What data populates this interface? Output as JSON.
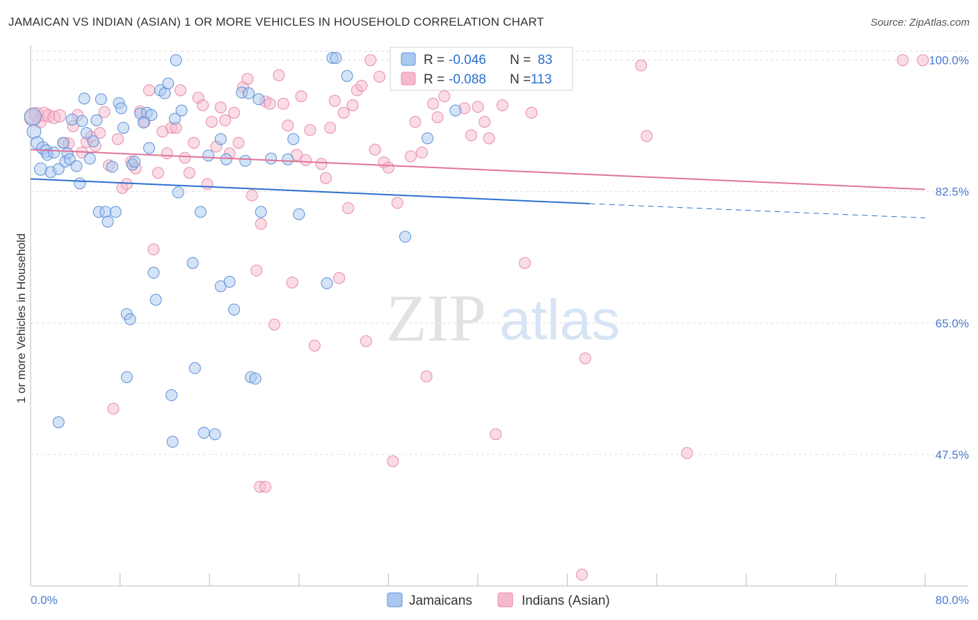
{
  "header": {
    "title": "JAMAICAN VS INDIAN (ASIAN) 1 OR MORE VEHICLES IN HOUSEHOLD CORRELATION CHART",
    "source": "Source: ZipAtlas.com"
  },
  "watermark": {
    "zip": "ZIP",
    "atlas": "atlas"
  },
  "colors": {
    "blue_fill": "#a9c8ef",
    "blue_stroke": "#5b8fd6",
    "blue_line": "#2a6fcf",
    "pink_fill": "#f5b9cc",
    "pink_stroke": "#e88aa8",
    "pink_line": "#e0739a",
    "axis_text": "#4a7bd0",
    "grid": "#dddddd"
  },
  "legend_box": {
    "rows": [
      {
        "r_label": "R =",
        "r_value": "-0.046",
        "n_label": "N =",
        "n_value": "83"
      },
      {
        "r_label": "R =",
        "r_value": "-0.088",
        "n_label": "N =",
        "n_value": "113"
      }
    ]
  },
  "chart_data": {
    "type": "scatter",
    "title": "JAMAICAN VS INDIAN (ASIAN) 1 OR MORE VEHICLES IN HOUSEHOLD CORRELATION CHART",
    "ylabel": "1 or more Vehicles in Household",
    "xlim": [
      0,
      80
    ],
    "ylim": [
      30,
      102
    ],
    "x_tick_labels": [
      "0.0%",
      "80.0%"
    ],
    "y_ticks": [
      {
        "value": 100,
        "label": "100.0%"
      },
      {
        "value": 82.5,
        "label": "82.5%"
      },
      {
        "value": 65,
        "label": "65.0%"
      },
      {
        "value": 47.5,
        "label": "47.5%"
      }
    ],
    "grid": true,
    "legend_position": "bottom",
    "series": [
      {
        "name": "Jamaicans",
        "trend": {
          "x0": 0,
          "y0": 84.2,
          "x1": 50,
          "y1": 80.9,
          "dash_x1": 80,
          "dash_y1": 79
        },
        "points": [
          [
            0.2,
            92.5,
            12
          ],
          [
            0.3,
            90.5,
            10
          ],
          [
            0.6,
            89,
            9
          ],
          [
            0.9,
            85.5,
            9
          ],
          [
            1.1,
            88.3,
            9
          ],
          [
            1.4,
            87.9,
            9
          ],
          [
            1.5,
            87.4,
            8
          ],
          [
            1.8,
            85.1,
            8
          ],
          [
            2.1,
            87.7,
            8
          ],
          [
            2.5,
            85.5,
            8
          ],
          [
            2.9,
            89,
            8
          ],
          [
            3.1,
            86.5,
            8
          ],
          [
            3.3,
            87.6,
            8
          ],
          [
            3.5,
            86.8,
            8
          ],
          [
            3.7,
            92.1,
            8
          ],
          [
            4.1,
            85.9,
            8
          ],
          [
            4.4,
            83.6,
            8
          ],
          [
            4.6,
            91.9,
            8
          ],
          [
            4.8,
            94.9,
            8
          ],
          [
            5.0,
            90.3,
            8
          ],
          [
            5.3,
            86.9,
            8
          ],
          [
            5.6,
            89.2,
            8
          ],
          [
            5.9,
            92.0,
            8
          ],
          [
            6.1,
            79.8,
            8
          ],
          [
            6.3,
            94.8,
            8
          ],
          [
            6.7,
            79.8,
            8
          ],
          [
            6.9,
            78.5,
            8
          ],
          [
            7.3,
            85.8,
            8
          ],
          [
            7.6,
            79.8,
            8
          ],
          [
            7.9,
            94.3,
            8
          ],
          [
            8.1,
            93.6,
            8
          ],
          [
            8.3,
            91.0,
            8
          ],
          [
            8.6,
            66.2,
            8
          ],
          [
            8.9,
            65.5,
            8
          ],
          [
            9.1,
            86.1,
            8
          ],
          [
            9.3,
            86.5,
            8
          ],
          [
            9.8,
            92.9,
            8
          ],
          [
            10.1,
            91.7,
            8
          ],
          [
            10.4,
            93.0,
            8
          ],
          [
            10.6,
            88.3,
            8
          ],
          [
            10.8,
            92.7,
            8
          ],
          [
            11.0,
            71.7,
            8
          ],
          [
            11.2,
            68.1,
            8
          ],
          [
            11.6,
            96.0,
            8
          ],
          [
            12.0,
            95.6,
            8
          ],
          [
            12.3,
            96.9,
            8
          ],
          [
            12.6,
            55.4,
            8
          ],
          [
            12.9,
            92.2,
            8
          ],
          [
            13.2,
            82.4,
            8
          ],
          [
            13.5,
            93.3,
            8
          ],
          [
            14.5,
            73.0,
            8
          ],
          [
            14.7,
            59.0,
            8
          ],
          [
            15.2,
            79.8,
            8
          ],
          [
            15.5,
            50.4,
            8
          ],
          [
            15.9,
            87.3,
            8
          ],
          [
            16.5,
            50.2,
            8
          ],
          [
            17.0,
            69.9,
            8
          ],
          [
            17.5,
            86.8,
            8
          ],
          [
            17.8,
            70.5,
            8
          ],
          [
            18.2,
            66.8,
            8
          ],
          [
            18.9,
            95.7,
            8
          ],
          [
            19.2,
            86.6,
            8
          ],
          [
            19.5,
            95.6,
            8
          ],
          [
            19.7,
            57.8,
            8
          ],
          [
            20.1,
            57.6,
            8
          ],
          [
            20.4,
            94.8,
            8
          ],
          [
            20.6,
            79.8,
            8
          ],
          [
            21.5,
            86.9,
            8
          ],
          [
            23.0,
            86.8,
            8
          ],
          [
            23.5,
            89.5,
            8
          ],
          [
            24.0,
            79.5,
            8
          ],
          [
            26.5,
            70.3,
            8
          ],
          [
            27.0,
            100.3,
            8
          ],
          [
            27.3,
            100.3,
            8
          ],
          [
            28.3,
            97.9,
            8
          ],
          [
            33.5,
            76.5,
            8
          ],
          [
            35.5,
            89.6,
            8
          ],
          [
            38.0,
            93.3,
            8
          ],
          [
            12.7,
            49.2,
            8
          ],
          [
            8.6,
            57.8,
            8
          ],
          [
            2.5,
            51.8,
            8
          ],
          [
            17.0,
            89.5,
            8
          ],
          [
            13.0,
            100.0,
            8
          ]
        ]
      },
      {
        "name": "Indians (Asian)",
        "trend": {
          "x0": 0,
          "y0": 88.1,
          "x1": 80,
          "y1": 82.8
        },
        "points": [
          [
            0.2,
            92.3,
            12
          ],
          [
            0.5,
            92.8,
            10
          ],
          [
            0.8,
            91.9,
            10
          ],
          [
            1.2,
            92.8,
            10
          ],
          [
            1.6,
            92.6,
            9
          ],
          [
            2.1,
            92.4,
            9
          ],
          [
            2.6,
            92.6,
            9
          ],
          [
            3.0,
            89.0,
            8
          ],
          [
            3.4,
            88.9,
            8
          ],
          [
            3.8,
            91.2,
            8
          ],
          [
            4.2,
            92.7,
            8
          ],
          [
            4.6,
            87.7,
            8
          ],
          [
            5.0,
            89.1,
            8
          ],
          [
            5.4,
            89.8,
            8
          ],
          [
            5.8,
            88.6,
            8
          ],
          [
            6.2,
            90.3,
            8
          ],
          [
            6.6,
            93.1,
            8
          ],
          [
            7.0,
            86.0,
            8
          ],
          [
            7.4,
            53.6,
            8
          ],
          [
            7.8,
            89.5,
            8
          ],
          [
            8.2,
            83.0,
            8
          ],
          [
            8.6,
            83.5,
            8
          ],
          [
            9.0,
            86.5,
            8
          ],
          [
            9.4,
            85.6,
            8
          ],
          [
            9.8,
            93.2,
            8
          ],
          [
            10.2,
            91.8,
            8
          ],
          [
            10.6,
            96.0,
            8
          ],
          [
            11.0,
            74.8,
            8
          ],
          [
            11.4,
            85.0,
            8
          ],
          [
            11.8,
            90.5,
            8
          ],
          [
            12.2,
            87.6,
            8
          ],
          [
            12.6,
            91.0,
            8
          ],
          [
            13.0,
            91.0,
            8
          ],
          [
            13.4,
            96.0,
            8
          ],
          [
            13.8,
            87.0,
            8
          ],
          [
            14.2,
            85.0,
            8
          ],
          [
            14.6,
            89.0,
            8
          ],
          [
            15.0,
            95.0,
            8
          ],
          [
            15.4,
            94.0,
            8
          ],
          [
            15.8,
            83.5,
            8
          ],
          [
            16.2,
            91.8,
            8
          ],
          [
            16.6,
            88.5,
            8
          ],
          [
            17.0,
            93.7,
            8
          ],
          [
            17.4,
            92.0,
            8
          ],
          [
            17.8,
            87.6,
            8
          ],
          [
            18.2,
            93.0,
            8
          ],
          [
            18.6,
            89.0,
            8
          ],
          [
            19.0,
            96.4,
            8
          ],
          [
            19.4,
            97.5,
            8
          ],
          [
            19.8,
            82.0,
            8
          ],
          [
            20.2,
            72.0,
            8
          ],
          [
            20.6,
            78.2,
            8
          ],
          [
            21.0,
            94.5,
            8
          ],
          [
            21.4,
            94.2,
            8
          ],
          [
            21.8,
            64.8,
            8
          ],
          [
            22.2,
            98.0,
            8
          ],
          [
            22.6,
            94.2,
            8
          ],
          [
            23.0,
            91.3,
            8
          ],
          [
            23.4,
            70.4,
            8
          ],
          [
            23.8,
            87.4,
            8
          ],
          [
            24.2,
            95.2,
            8
          ],
          [
            24.6,
            86.7,
            8
          ],
          [
            25.0,
            90.7,
            8
          ],
          [
            25.4,
            62.0,
            8
          ],
          [
            26.0,
            86.2,
            8
          ],
          [
            26.4,
            84.3,
            8
          ],
          [
            26.8,
            91.0,
            8
          ],
          [
            27.2,
            94.6,
            8
          ],
          [
            27.6,
            71.0,
            8
          ],
          [
            28.0,
            93.0,
            8
          ],
          [
            28.4,
            80.3,
            8
          ],
          [
            28.8,
            94.0,
            8
          ],
          [
            29.2,
            96.0,
            8
          ],
          [
            29.6,
            96.6,
            8
          ],
          [
            30.0,
            62.6,
            8
          ],
          [
            30.4,
            100.0,
            8
          ],
          [
            30.8,
            88.1,
            8
          ],
          [
            31.2,
            97.8,
            8
          ],
          [
            31.6,
            86.4,
            8
          ],
          [
            32.0,
            85.7,
            8
          ],
          [
            32.4,
            46.6,
            8
          ],
          [
            32.8,
            81.0,
            8
          ],
          [
            33.2,
            98.4,
            8
          ],
          [
            34.0,
            87.2,
            8
          ],
          [
            34.4,
            91.8,
            8
          ],
          [
            35.0,
            87.7,
            8
          ],
          [
            35.4,
            57.9,
            8
          ],
          [
            36.0,
            94.2,
            8
          ],
          [
            36.4,
            92.4,
            8
          ],
          [
            37.0,
            95.2,
            8
          ],
          [
            38.0,
            97.6,
            8
          ],
          [
            38.4,
            99.3,
            8
          ],
          [
            38.8,
            93.6,
            8
          ],
          [
            39.4,
            90.0,
            8
          ],
          [
            40.0,
            93.8,
            8
          ],
          [
            40.6,
            91.8,
            8
          ],
          [
            41.0,
            89.6,
            8
          ],
          [
            41.6,
            50.2,
            8
          ],
          [
            42.2,
            94.0,
            8
          ],
          [
            42.6,
            96.8,
            8
          ],
          [
            43.4,
            100.0,
            8
          ],
          [
            44.2,
            73.0,
            8
          ],
          [
            44.8,
            93.0,
            8
          ],
          [
            47.4,
            99.0,
            8
          ],
          [
            49.3,
            31.5,
            8
          ],
          [
            49.6,
            60.3,
            8
          ],
          [
            55.1,
            89.9,
            8
          ],
          [
            58.7,
            47.7,
            8
          ],
          [
            78.0,
            100.0,
            8
          ],
          [
            79.8,
            100.0,
            8
          ],
          [
            54.6,
            99.3,
            8
          ],
          [
            20.5,
            43.2,
            8
          ],
          [
            21.0,
            43.2,
            8
          ]
        ]
      }
    ]
  },
  "bottom_legend": [
    {
      "label": "Jamaicans"
    },
    {
      "label": "Indians (Asian)"
    }
  ]
}
